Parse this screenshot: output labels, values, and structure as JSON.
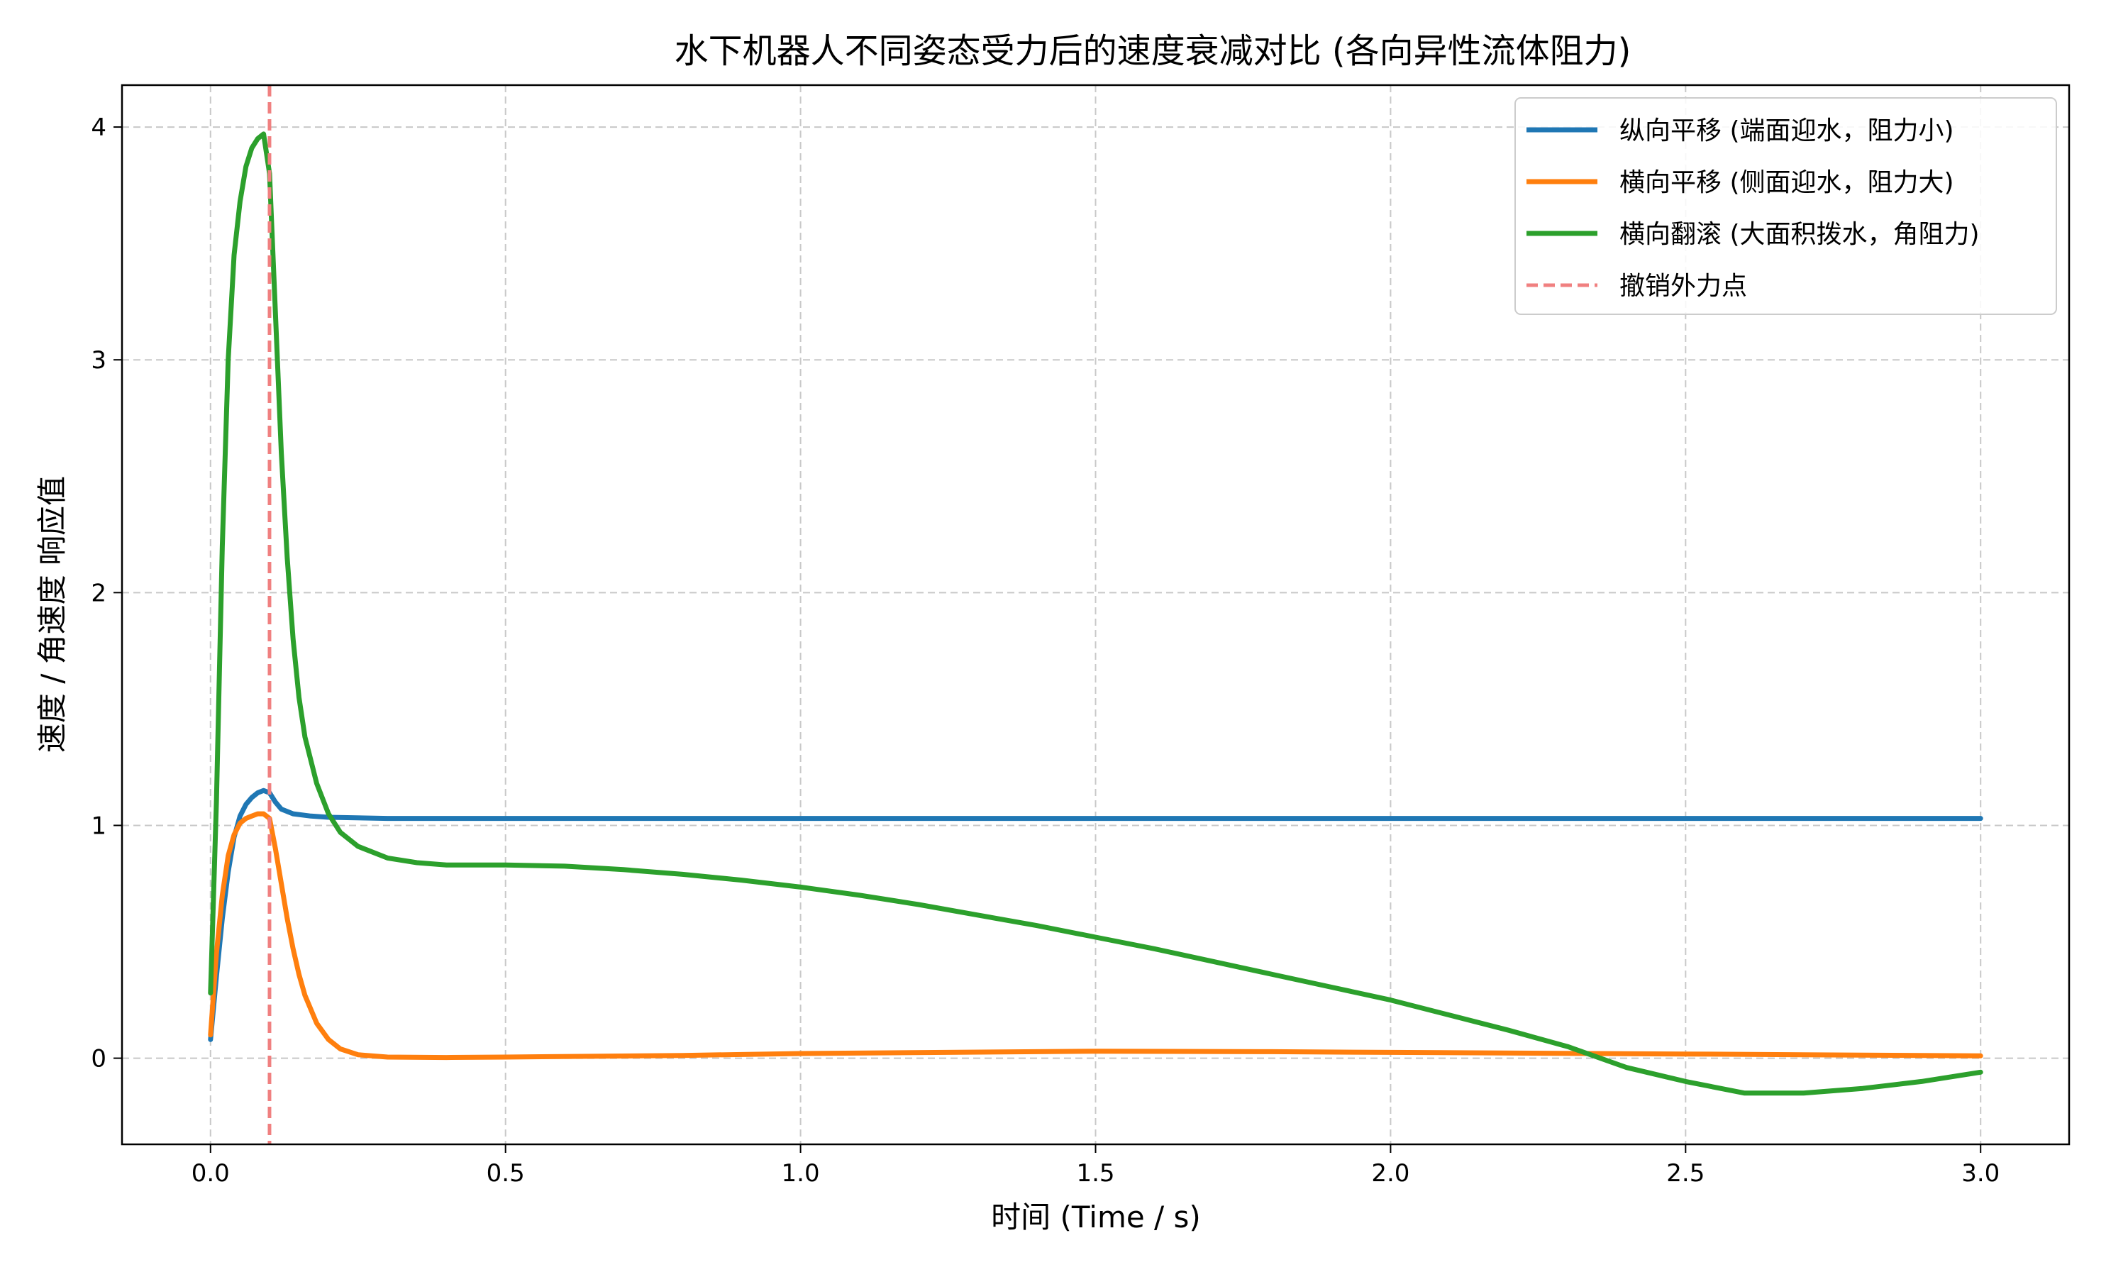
{
  "chart_data": {
    "type": "line",
    "title": "水下机器人不同姿态受力后的速度衰减对比 (各向异性流体阻力)",
    "xlabel": "时间 (Time / s)",
    "ylabel": "速度 / 角速度 响应值",
    "xlim": [
      -0.15,
      3.15
    ],
    "ylim": [
      -0.37,
      4.18
    ],
    "xticks": [
      0.0,
      0.5,
      1.0,
      1.5,
      2.0,
      2.5,
      3.0
    ],
    "xtick_labels": [
      "0.0",
      "0.5",
      "1.0",
      "1.5",
      "2.0",
      "2.5",
      "3.0"
    ],
    "yticks": [
      0,
      1,
      2,
      3,
      4
    ],
    "ytick_labels": [
      "0",
      "1",
      "2",
      "3",
      "4"
    ],
    "grid": true,
    "legend_position": "top-right",
    "series": [
      {
        "name": "纵向平移 (端面迎水，阻力小)",
        "color": "#1f77b4",
        "points": [
          [
            0.0,
            0.08
          ],
          [
            0.01,
            0.35
          ],
          [
            0.02,
            0.6
          ],
          [
            0.03,
            0.8
          ],
          [
            0.04,
            0.95
          ],
          [
            0.05,
            1.04
          ],
          [
            0.06,
            1.09
          ],
          [
            0.07,
            1.12
          ],
          [
            0.08,
            1.14
          ],
          [
            0.09,
            1.15
          ],
          [
            0.1,
            1.14
          ],
          [
            0.11,
            1.1
          ],
          [
            0.12,
            1.07
          ],
          [
            0.14,
            1.05
          ],
          [
            0.17,
            1.04
          ],
          [
            0.2,
            1.035
          ],
          [
            0.3,
            1.03
          ],
          [
            0.5,
            1.03
          ],
          [
            1.0,
            1.03
          ],
          [
            1.5,
            1.03
          ],
          [
            2.0,
            1.03
          ],
          [
            2.5,
            1.03
          ],
          [
            3.0,
            1.03
          ]
        ]
      },
      {
        "name": "横向平移 (侧面迎水，阻力大)",
        "color": "#ff7f0e",
        "points": [
          [
            0.0,
            0.1
          ],
          [
            0.01,
            0.45
          ],
          [
            0.02,
            0.7
          ],
          [
            0.03,
            0.87
          ],
          [
            0.04,
            0.96
          ],
          [
            0.05,
            1.01
          ],
          [
            0.06,
            1.03
          ],
          [
            0.07,
            1.04
          ],
          [
            0.08,
            1.05
          ],
          [
            0.09,
            1.05
          ],
          [
            0.1,
            1.03
          ],
          [
            0.11,
            0.9
          ],
          [
            0.12,
            0.75
          ],
          [
            0.13,
            0.6
          ],
          [
            0.14,
            0.47
          ],
          [
            0.15,
            0.36
          ],
          [
            0.16,
            0.27
          ],
          [
            0.18,
            0.15
          ],
          [
            0.2,
            0.08
          ],
          [
            0.22,
            0.04
          ],
          [
            0.25,
            0.015
          ],
          [
            0.3,
            0.005
          ],
          [
            0.4,
            0.003
          ],
          [
            0.5,
            0.005
          ],
          [
            0.8,
            0.012
          ],
          [
            1.0,
            0.02
          ],
          [
            1.5,
            0.03
          ],
          [
            1.8,
            0.028
          ],
          [
            2.0,
            0.025
          ],
          [
            2.5,
            0.018
          ],
          [
            3.0,
            0.01
          ]
        ]
      },
      {
        "name": "横向翻滚 (大面积拨水，角阻力)",
        "color": "#2ca02c",
        "points": [
          [
            0.0,
            0.28
          ],
          [
            0.01,
            1.1
          ],
          [
            0.02,
            2.2
          ],
          [
            0.03,
            3.0
          ],
          [
            0.04,
            3.45
          ],
          [
            0.05,
            3.68
          ],
          [
            0.06,
            3.83
          ],
          [
            0.07,
            3.91
          ],
          [
            0.08,
            3.95
          ],
          [
            0.09,
            3.97
          ],
          [
            0.1,
            3.8
          ],
          [
            0.11,
            3.2
          ],
          [
            0.12,
            2.6
          ],
          [
            0.13,
            2.15
          ],
          [
            0.14,
            1.8
          ],
          [
            0.15,
            1.55
          ],
          [
            0.16,
            1.38
          ],
          [
            0.18,
            1.18
          ],
          [
            0.2,
            1.05
          ],
          [
            0.22,
            0.97
          ],
          [
            0.25,
            0.91
          ],
          [
            0.3,
            0.86
          ],
          [
            0.35,
            0.84
          ],
          [
            0.4,
            0.83
          ],
          [
            0.5,
            0.83
          ],
          [
            0.6,
            0.825
          ],
          [
            0.7,
            0.81
          ],
          [
            0.8,
            0.79
          ],
          [
            0.9,
            0.765
          ],
          [
            1.0,
            0.735
          ],
          [
            1.1,
            0.7
          ],
          [
            1.2,
            0.66
          ],
          [
            1.3,
            0.615
          ],
          [
            1.4,
            0.57
          ],
          [
            1.5,
            0.52
          ],
          [
            1.6,
            0.47
          ],
          [
            1.7,
            0.415
          ],
          [
            1.8,
            0.36
          ],
          [
            1.9,
            0.305
          ],
          [
            2.0,
            0.25
          ],
          [
            2.1,
            0.185
          ],
          [
            2.2,
            0.12
          ],
          [
            2.3,
            0.05
          ],
          [
            2.4,
            -0.04
          ],
          [
            2.5,
            -0.1
          ],
          [
            2.6,
            -0.15
          ],
          [
            2.7,
            -0.15
          ],
          [
            2.8,
            -0.13
          ],
          [
            2.9,
            -0.1
          ],
          [
            3.0,
            -0.06
          ]
        ]
      }
    ],
    "vline": {
      "name": "撤销外力点",
      "x": 0.1,
      "color": "#f08080"
    }
  }
}
